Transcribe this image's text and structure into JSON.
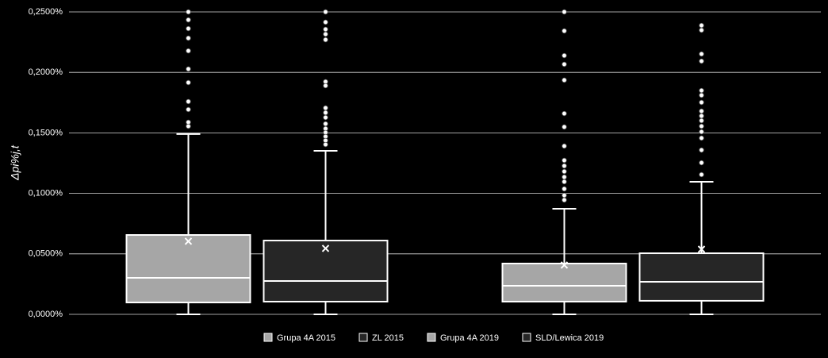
{
  "chart_data": {
    "type": "box",
    "y_label": "Δpi%j,t",
    "categories": [
      null,
      null
    ],
    "ylim": [
      0,
      0.25
    ],
    "yticks": [
      {
        "value": 0,
        "label": "0,0000%"
      },
      {
        "value": 0.05,
        "label": "0,0500%"
      },
      {
        "value": 0.1,
        "label": "0,1000%"
      },
      {
        "value": 0.15,
        "label": "0,1500%"
      },
      {
        "value": 0.2,
        "label": "0,2000%"
      },
      {
        "value": 0.25,
        "label": "0,2500%"
      }
    ],
    "grid": true,
    "legend": "bottom",
    "series": [
      {
        "name": "Grupa 4A 2015",
        "color": "#a6a6a6",
        "values": [
          {
            "min": 0,
            "q1": 0.0098,
            "median": 0.0302,
            "q3": 0.0656,
            "max": 0.149,
            "mean": 0.0604,
            "outliers": [
              0.25,
              0.2434,
              0.2362,
              0.2283,
              0.2178,
              0.2028,
              0.1916,
              0.1759,
              0.1693,
              0.1588,
              0.1555
            ]
          },
          null
        ]
      },
      {
        "name": "ZL 2015",
        "color": "#262626",
        "values": [
          {
            "min": 0,
            "q1": 0.0105,
            "median": 0.0276,
            "q3": 0.061,
            "max": 0.1352,
            "mean": 0.0545,
            "outliers": [
              0.25,
              0.2415,
              0.2356,
              0.2316,
              0.227,
              0.1923,
              0.189,
              0.1706,
              0.1667,
              0.1627,
              0.1575,
              0.1535,
              0.1503,
              0.147,
              0.1437,
              0.1404
            ]
          },
          null
        ]
      },
      {
        "name": "Grupa 4A 2019",
        "color": "#a6a6a6",
        "values": [
          null,
          {
            "min": 0,
            "q1": 0.0105,
            "median": 0.0236,
            "q3": 0.042,
            "max": 0.0873,
            "mean": 0.0407,
            "outliers": [
              0.25,
              0.2343,
              0.2139,
              0.2067,
              0.1936,
              0.166,
              0.1549,
              0.1391,
              0.1273,
              0.1227,
              0.1181,
              0.1135,
              0.1096,
              0.1037,
              0.0984,
              0.0945
            ]
          }
        ]
      },
      {
        "name": "SLD/Lewica 2019",
        "color": "#262626",
        "values": [
          null,
          {
            "min": 0,
            "q1": 0.0112,
            "median": 0.0269,
            "q3": 0.0505,
            "max": 0.1096,
            "mean": 0.0538,
            "outliers": [
              0.2388,
              0.2349,
              0.2152,
              0.2093,
              0.185,
              0.1811,
              0.1752,
              0.168,
              0.164,
              0.1601,
              0.1555,
              0.1509,
              0.1457,
              0.1358,
              0.1253,
              0.1155
            ]
          }
        ]
      }
    ]
  }
}
